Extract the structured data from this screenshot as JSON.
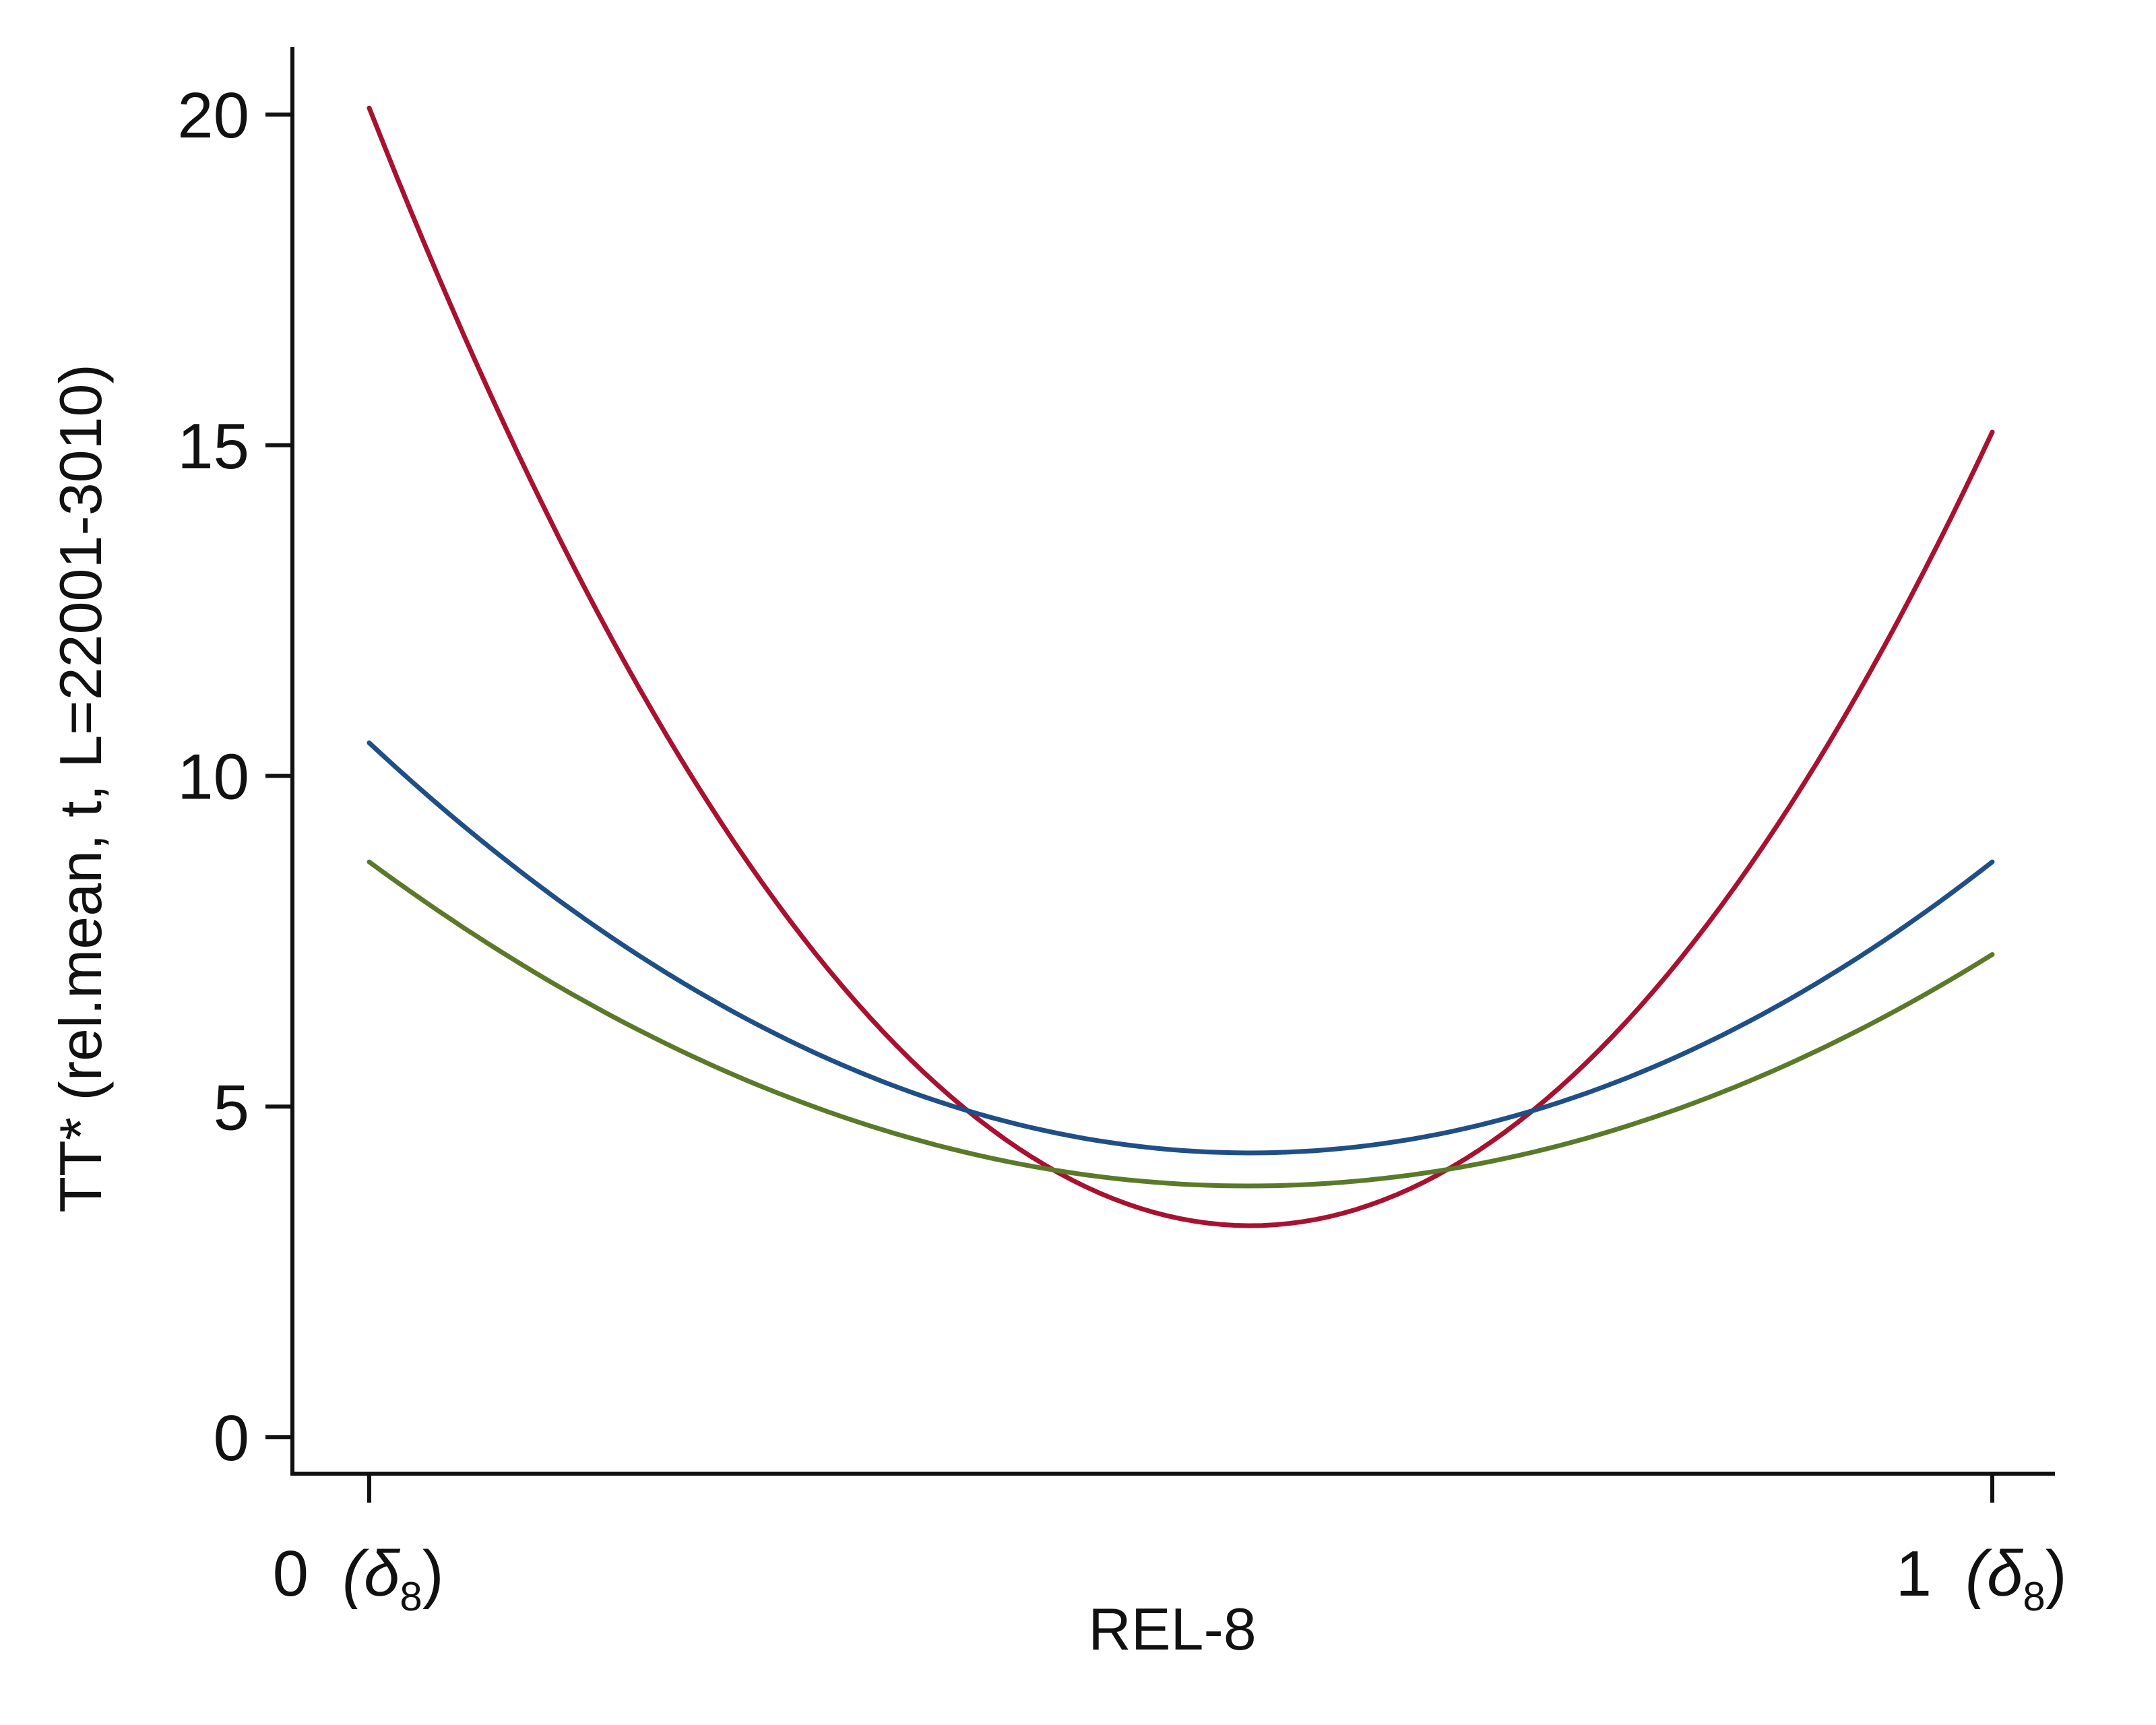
{
  "chart_data": {
    "type": "line",
    "xlabel": "REL-8",
    "ylabel": "TT* (rel.mean, t, L=22001-3010)",
    "x_ticks": [
      {
        "value": 0,
        "label": "0",
        "suffix": "(δ",
        "sub": "8",
        "close": ")"
      },
      {
        "value": 1,
        "label": "1",
        "suffix": "(δ",
        "sub": "8",
        "close": ")"
      }
    ],
    "y_ticks": [
      0,
      5,
      10,
      15,
      20
    ],
    "xlim": [
      0,
      1
    ],
    "ylim": [
      0,
      20
    ],
    "grid": false,
    "series": [
      {
        "color": "#a8112f",
        "x": [
          0,
          0.54,
          1
        ],
        "y": [
          20.1,
          3.2,
          15.2
        ]
      },
      {
        "color": "#1f4f86",
        "x": [
          0,
          0.54,
          1
        ],
        "y": [
          10.5,
          4.3,
          8.7
        ]
      },
      {
        "color": "#5a7a2a",
        "x": [
          0,
          0.54,
          1
        ],
        "y": [
          8.7,
          3.8,
          7.3
        ]
      }
    ]
  }
}
